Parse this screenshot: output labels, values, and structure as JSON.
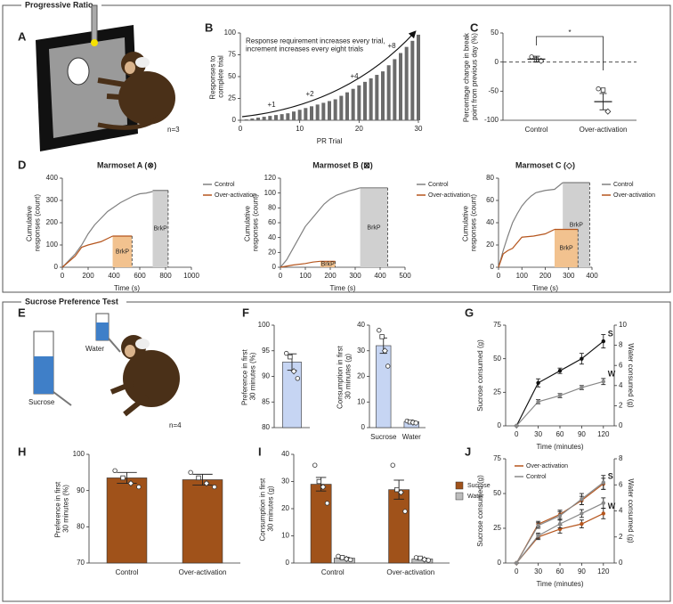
{
  "sections": [
    {
      "title": "Progressive Ratio"
    },
    {
      "title": "Sucrose Preference Test"
    }
  ],
  "panel_labels": [
    "A",
    "B",
    "C",
    "D",
    "E",
    "F",
    "G",
    "H",
    "I",
    "J"
  ],
  "illustrations": {
    "A": {
      "count": "n=3"
    },
    "E": {
      "water": "Water",
      "sucrose": "Sucrose",
      "count": "n=4"
    }
  },
  "chart_data": [
    {
      "type": "bar",
      "note": "Response requirement increases every trial, increment increases every eight trials",
      "ylabel": "Responses to complete trial",
      "xlabel": "PR Trial",
      "x": [
        1,
        2,
        3,
        4,
        5,
        6,
        7,
        8,
        9,
        10,
        11,
        12,
        13,
        14,
        15,
        16,
        17,
        18,
        19,
        20,
        21,
        22,
        23,
        24,
        25,
        26,
        27,
        28,
        29,
        30
      ],
      "values": [
        1,
        2,
        3,
        4,
        5,
        6,
        7,
        8,
        10,
        12,
        14,
        16,
        18,
        20,
        22,
        24,
        28,
        32,
        36,
        40,
        44,
        48,
        52,
        56,
        63,
        70,
        77,
        84,
        91,
        98
      ],
      "color": "#6b6b6b",
      "xlim": [
        0,
        30
      ],
      "xticks": [
        0,
        10,
        20,
        30
      ],
      "ylim": [
        0,
        100
      ],
      "yticks": [
        0,
        25,
        50,
        75,
        100
      ],
      "annotations": [
        "+1",
        "+2",
        "+4",
        "+8"
      ]
    },
    {
      "type": "strip",
      "ylabel": "Percentage change in break point from previous day (%)",
      "categories": [
        "Control",
        "Over-activation"
      ],
      "ylim": [
        -100,
        50
      ],
      "yticks": [
        -100,
        -50,
        0,
        50
      ],
      "series": [
        {
          "color": "#222222",
          "values": [
            5,
            -68
          ],
          "errors": [
            5,
            14
          ],
          "points": [
            [
              9,
              4,
              2
            ],
            [
              -46,
              -48,
              -85
            ]
          ]
        }
      ],
      "significance": "*",
      "reference_line": 0
    },
    {
      "type": "line",
      "title": "Marmoset A (⊗)",
      "ylabel": "Cumulative responses (count)",
      "xlabel": "Time (s)",
      "xlim": [
        0,
        1000
      ],
      "xticks": [
        0,
        200,
        400,
        600,
        800,
        1000
      ],
      "ylim": [
        0,
        400
      ],
      "yticks": [
        0,
        100,
        200,
        300,
        400
      ],
      "breakpoint_label": "BrkP",
      "series": [
        {
          "name": "Control",
          "color": "#808080",
          "x": [
            0,
            50,
            100,
            150,
            200,
            250,
            300,
            350,
            400,
            450,
            500,
            550,
            600,
            650,
            700
          ],
          "values": [
            0,
            30,
            60,
            100,
            150,
            190,
            220,
            250,
            270,
            290,
            305,
            320,
            330,
            333,
            340
          ],
          "breakpoint": {
            "x": [
              700,
              820
            ],
            "y": 345,
            "color": "#d0d0d0"
          }
        },
        {
          "name": "Over-activation",
          "color": "#b5551d",
          "x": [
            0,
            100,
            150,
            200,
            300,
            390
          ],
          "values": [
            0,
            50,
            90,
            100,
            115,
            140
          ],
          "breakpoint": {
            "x": [
              390,
              540
            ],
            "y": 140,
            "color": "#f2c28f"
          }
        }
      ]
    },
    {
      "type": "line",
      "title": "Marmoset B (⊠)",
      "ylabel": "Cumulative responses (count)",
      "xlabel": "Time (s)",
      "xlim": [
        0,
        500
      ],
      "xticks": [
        0,
        100,
        200,
        300,
        400,
        500
      ],
      "ylim": [
        0,
        120
      ],
      "yticks": [
        0,
        20,
        40,
        60,
        80,
        100,
        120
      ],
      "breakpoint_label": "BrkP",
      "series": [
        {
          "name": "Control",
          "color": "#808080",
          "x": [
            0,
            25,
            50,
            75,
            100,
            125,
            150,
            175,
            200,
            225,
            250,
            275,
            300,
            320
          ],
          "values": [
            0,
            10,
            25,
            40,
            55,
            65,
            75,
            85,
            92,
            97,
            100,
            103,
            105,
            107
          ],
          "breakpoint": {
            "x": [
              320,
              430
            ],
            "y": 107,
            "color": "#d0d0d0"
          }
        },
        {
          "name": "Over-activation",
          "color": "#b5551d",
          "x": [
            0,
            50,
            100,
            130,
            160
          ],
          "values": [
            0,
            3,
            5,
            7,
            8
          ],
          "breakpoint": {
            "x": [
              160,
              220
            ],
            "y": 8,
            "color": "#f2c28f"
          }
        }
      ]
    },
    {
      "type": "line",
      "title": "Marmoset C (◇)",
      "ylabel": "Cumulative responses (count)",
      "xlabel": "Time (s)",
      "xlim": [
        0,
        400
      ],
      "xticks": [
        0,
        100,
        200,
        300,
        400
      ],
      "ylim": [
        0,
        80
      ],
      "yticks": [
        0,
        20,
        40,
        60,
        80
      ],
      "breakpoint_label": "BrkP",
      "series": [
        {
          "name": "Control",
          "color": "#808080",
          "x": [
            0,
            20,
            40,
            60,
            80,
            100,
            120,
            140,
            160,
            180,
            200,
            240,
            275
          ],
          "values": [
            0,
            15,
            28,
            40,
            48,
            55,
            60,
            64,
            67,
            68,
            69,
            70,
            76
          ],
          "breakpoint": {
            "x": [
              275,
              390
            ],
            "y": 76,
            "color": "#d0d0d0"
          }
        },
        {
          "name": "Over-activation",
          "color": "#b5551d",
          "x": [
            0,
            20,
            40,
            60,
            100,
            150,
            200,
            240
          ],
          "values": [
            0,
            12,
            15,
            17,
            27,
            28,
            30,
            34
          ],
          "breakpoint": {
            "x": [
              240,
              340
            ],
            "y": 34,
            "color": "#f2c28f"
          }
        }
      ]
    },
    {
      "type": "bar",
      "ylabel": "Preference in first 30 minutes (%)",
      "categories": [
        null
      ],
      "ylim": [
        80,
        100
      ],
      "yticks": [
        80,
        85,
        90,
        95,
        100
      ],
      "series": [
        {
          "color": "#c6d5f3",
          "values": [
            92.8
          ],
          "errors": [
            1.6
          ],
          "points": [
            [
              94.5,
              93.8,
              91,
              89.6
            ]
          ]
        }
      ]
    },
    {
      "type": "bar",
      "ylabel": "Consumption in first 30 minutes (g)",
      "categories": [
        "Sucrose",
        "Water"
      ],
      "ylim": [
        0,
        40
      ],
      "yticks": [
        0,
        10,
        20,
        30,
        40
      ],
      "series": [
        {
          "color": "#c6d5f3",
          "values": [
            32,
            2.3
          ],
          "errors": [
            3,
            0.4
          ],
          "points": [
            [
              38,
              35.5,
              30,
              24
            ],
            [
              2.6,
              2.2,
              2,
              1.8
            ]
          ]
        }
      ]
    },
    {
      "type": "line",
      "xlabel": "Time (minutes)",
      "ylabel": "Sucrose consumed (g)",
      "y2label": "Water consumed (g)",
      "x": [
        0,
        30,
        60,
        90,
        120
      ],
      "xlim": [
        -15,
        135
      ],
      "xticks": [
        0,
        30,
        60,
        90,
        120
      ],
      "ylim": [
        0,
        75
      ],
      "yticks": [
        0,
        25,
        50,
        75
      ],
      "y2lim": [
        0,
        10
      ],
      "y2ticks": [
        0,
        2,
        4,
        6,
        8,
        10
      ],
      "annotations": [
        "S",
        "W"
      ],
      "series": [
        {
          "color": "#111111",
          "values": [
            0,
            32,
            41,
            50,
            63
          ],
          "errors": [
            0,
            3,
            2,
            4,
            5
          ]
        },
        {
          "color": "#888888",
          "axis": "y2",
          "values": [
            0,
            2.4,
            3,
            3.8,
            4.4
          ],
          "errors": [
            0,
            0.2,
            0.2,
            0.2,
            0.3
          ]
        }
      ]
    },
    {
      "type": "bar",
      "ylabel": "Preference in first 30 minutes (%)",
      "categories": [
        "Control",
        "Over-activation"
      ],
      "ylim": [
        70,
        100
      ],
      "yticks": [
        70,
        80,
        90,
        100
      ],
      "series": [
        {
          "color": "#a0521a",
          "values": [
            93.5,
            93
          ],
          "errors": [
            1.5,
            1.5
          ],
          "points": [
            [
              95.5,
              93.5,
              92,
              91
            ],
            [
              95,
              93.5,
              92,
              91
            ]
          ]
        }
      ]
    },
    {
      "type": "bar",
      "ylabel": "Consumption in first 30 minutes (g)",
      "categories": [
        "Control",
        "Over-activation"
      ],
      "ylim": [
        0,
        40
      ],
      "yticks": [
        0,
        10,
        20,
        30,
        40
      ],
      "series": [
        {
          "name": "Sucrose",
          "color": "#a0521a",
          "values": [
            29,
            27
          ],
          "errors": [
            2.5,
            3.5
          ],
          "points": [
            [
              36,
              30,
              28,
              22
            ],
            [
              36,
              27,
              26,
              19
            ]
          ]
        },
        {
          "name": "Water",
          "color": "#bdbdbd",
          "values": [
            1.8,
            1.5
          ],
          "errors": [
            0.3,
            0.3
          ],
          "points": [
            [
              2.5,
              2,
              1.5,
              1.2
            ],
            [
              2,
              1.8,
              1.3,
              1
            ]
          ]
        }
      ]
    },
    {
      "type": "line",
      "xlabel": "Time (minutes)",
      "ylabel": "Sucrose consumed (g)",
      "y2label": "Water consumed (g)",
      "x": [
        0,
        30,
        60,
        90,
        120
      ],
      "xlim": [
        -15,
        135
      ],
      "xticks": [
        0,
        30,
        60,
        90,
        120
      ],
      "ylim": [
        0,
        75
      ],
      "yticks": [
        0,
        25,
        50,
        75
      ],
      "y2lim": [
        0,
        8
      ],
      "y2ticks": [
        0,
        2,
        4,
        6,
        8
      ],
      "annotations": [
        "S",
        "W"
      ],
      "series": [
        {
          "name": "Over-activation",
          "color": "#b5551d",
          "values": [
            0,
            28,
            35,
            45,
            57
          ],
          "errors": [
            0,
            2,
            3,
            3,
            4
          ]
        },
        {
          "color": "#b5551d",
          "axis": "y2",
          "values": [
            0,
            2,
            2.6,
            3,
            3.8
          ],
          "errors": [
            0,
            0.2,
            0.3,
            0.3,
            0.4
          ]
        },
        {
          "name": "Control",
          "color": "#888888",
          "values": [
            0,
            27,
            34,
            46,
            58
          ],
          "errors": [
            0,
            2,
            3,
            4,
            5
          ]
        },
        {
          "color": "#888888",
          "axis": "y2",
          "values": [
            0,
            2.1,
            3,
            3.8,
            4.6
          ],
          "errors": [
            0,
            0.2,
            0.3,
            0.3,
            0.4
          ]
        }
      ]
    }
  ]
}
